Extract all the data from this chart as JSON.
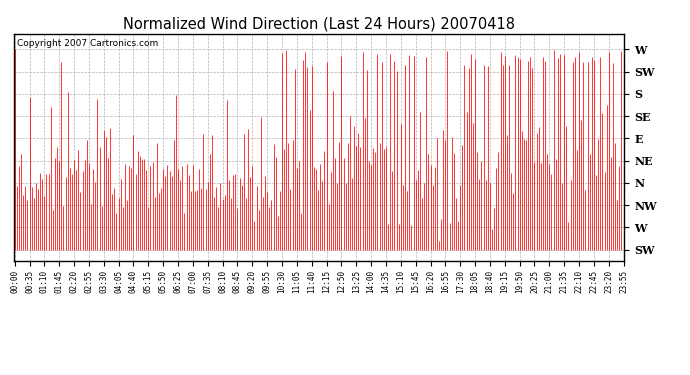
{
  "title": "Normalized Wind Direction (Last 24 Hours) 20070418",
  "copyright_text": "Copyright 2007 Cartronics.com",
  "line_color": "#FF0000",
  "background_color": "#FFFFFF",
  "grid_color": "#AAAAAA",
  "ytick_labels": [
    "W",
    "SW",
    "S",
    "SE",
    "E",
    "NE",
    "N",
    "NW",
    "W",
    "SW"
  ],
  "ytick_values": [
    9,
    8,
    7,
    6,
    5,
    4,
    3,
    2,
    1,
    0
  ],
  "ylim": [
    -0.5,
    9.7
  ],
  "n_points": 288,
  "minutes_per_step": 5,
  "tick_every_n": 7,
  "figsize": [
    6.9,
    3.75
  ],
  "dpi": 100
}
